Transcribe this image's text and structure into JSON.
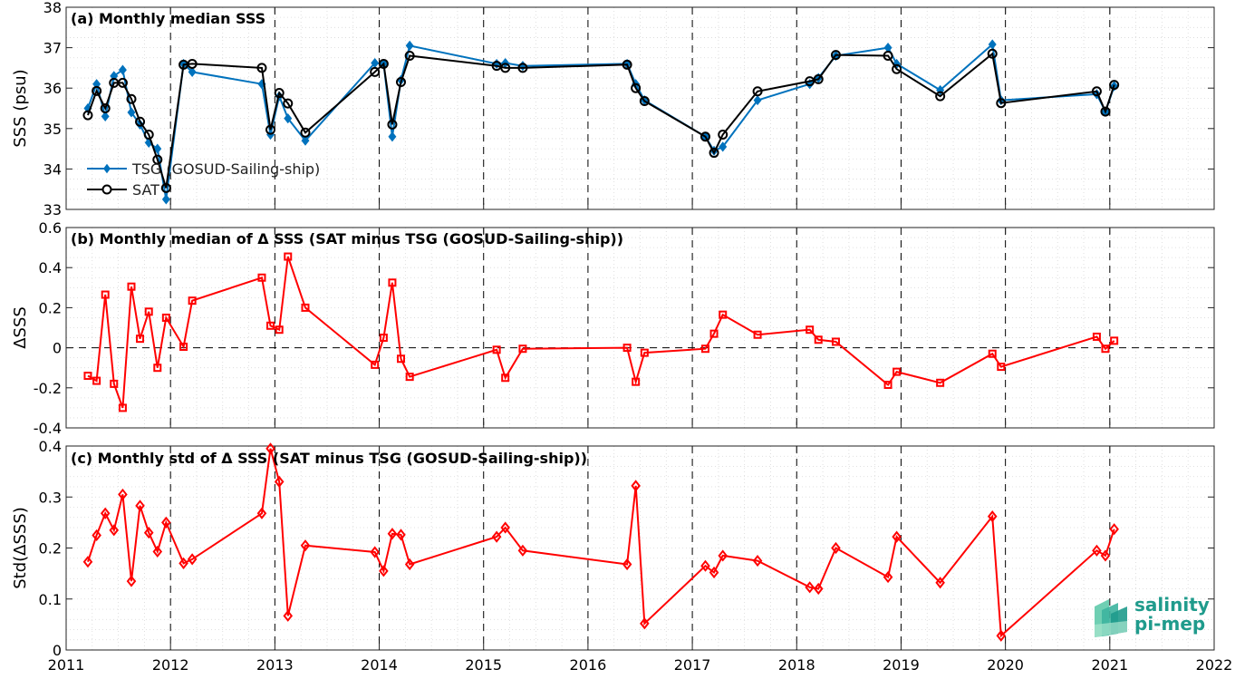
{
  "logo": {
    "line1": "salinity",
    "line2": "pi-mep"
  },
  "x_ticks": [
    "2011",
    "2012",
    "2013",
    "2014",
    "2015",
    "2016",
    "2017",
    "2018",
    "2019",
    "2020",
    "2021",
    "2022"
  ],
  "colors": {
    "tsg": "#0072BD",
    "sat": "#000000",
    "delta": "#FF0000"
  },
  "chart_data": [
    {
      "type": "line",
      "title": "(a) Monthly median SSS",
      "ylabel": "SSS (psu)",
      "xlim": [
        2011,
        2022
      ],
      "ylim": [
        33,
        38
      ],
      "yticks": [
        "33",
        "34",
        "35",
        "36",
        "37",
        "38"
      ],
      "grid": true,
      "legend_position": "bottom-left",
      "series": [
        {
          "name": "TSG (GOSUD-Sailing-ship)",
          "marker": "diamond",
          "points": [
            [
              2011.208,
              35.5
            ],
            [
              2011.292,
              36.1
            ],
            [
              2011.375,
              35.3
            ],
            [
              2011.458,
              36.3
            ],
            [
              2011.542,
              36.45
            ],
            [
              2011.625,
              35.4
            ],
            [
              2011.708,
              35.1
            ],
            [
              2011.792,
              34.65
            ],
            [
              2011.875,
              34.5
            ],
            [
              2011.958,
              33.25
            ],
            [
              2012.125,
              36.6
            ],
            [
              2012.208,
              36.4
            ],
            [
              2012.875,
              36.1
            ],
            [
              2012.958,
              34.85
            ],
            [
              2013.042,
              35.8
            ],
            [
              2013.125,
              35.25
            ],
            [
              2013.292,
              34.7
            ],
            [
              2013.958,
              36.62
            ],
            [
              2014.042,
              36.6
            ],
            [
              2014.125,
              34.8
            ],
            [
              2014.208,
              36.2
            ],
            [
              2014.292,
              37.05
            ],
            [
              2015.125,
              36.6
            ],
            [
              2015.208,
              36.62
            ],
            [
              2015.375,
              36.55
            ],
            [
              2016.375,
              36.6
            ],
            [
              2016.458,
              36.1
            ],
            [
              2016.542,
              35.7
            ],
            [
              2017.125,
              34.8
            ],
            [
              2017.208,
              34.45
            ],
            [
              2017.292,
              34.55
            ],
            [
              2017.625,
              35.7
            ],
            [
              2018.125,
              36.1
            ],
            [
              2018.208,
              36.25
            ],
            [
              2018.375,
              36.8
            ],
            [
              2018.875,
              37.0
            ],
            [
              2018.958,
              36.6
            ],
            [
              2019.375,
              35.95
            ],
            [
              2019.875,
              37.08
            ],
            [
              2019.958,
              35.7
            ],
            [
              2020.875,
              35.85
            ],
            [
              2020.958,
              35.42
            ],
            [
              2021.042,
              36.05
            ]
          ]
        },
        {
          "name": "SAT",
          "marker": "circle",
          "points": [
            [
              2011.208,
              35.33
            ],
            [
              2011.292,
              35.93
            ],
            [
              2011.375,
              35.5
            ],
            [
              2011.458,
              36.13
            ],
            [
              2011.542,
              36.13
            ],
            [
              2011.625,
              35.73
            ],
            [
              2011.708,
              35.17
            ],
            [
              2011.792,
              34.85
            ],
            [
              2011.875,
              34.23
            ],
            [
              2011.958,
              33.53
            ],
            [
              2012.125,
              36.58
            ],
            [
              2012.208,
              36.6
            ],
            [
              2012.875,
              36.5
            ],
            [
              2012.958,
              34.97
            ],
            [
              2013.042,
              35.88
            ],
            [
              2013.125,
              35.62
            ],
            [
              2013.292,
              34.9
            ],
            [
              2013.958,
              36.4
            ],
            [
              2014.042,
              36.6
            ],
            [
              2014.125,
              35.1
            ],
            [
              2014.208,
              36.15
            ],
            [
              2014.292,
              36.8
            ],
            [
              2015.125,
              36.55
            ],
            [
              2015.208,
              36.5
            ],
            [
              2015.375,
              36.5
            ],
            [
              2016.375,
              36.58
            ],
            [
              2016.458,
              36.0
            ],
            [
              2016.542,
              35.68
            ],
            [
              2017.125,
              34.8
            ],
            [
              2017.208,
              34.4
            ],
            [
              2017.292,
              34.85
            ],
            [
              2017.625,
              35.92
            ],
            [
              2018.125,
              36.17
            ],
            [
              2018.208,
              36.22
            ],
            [
              2018.375,
              36.82
            ],
            [
              2018.875,
              36.8
            ],
            [
              2018.958,
              36.47
            ],
            [
              2019.375,
              35.8
            ],
            [
              2019.875,
              36.85
            ],
            [
              2019.958,
              35.63
            ],
            [
              2020.875,
              35.92
            ],
            [
              2020.958,
              35.42
            ],
            [
              2021.042,
              36.08
            ]
          ]
        }
      ]
    },
    {
      "type": "line",
      "title": "(b) Monthly median of Δ SSS (SAT minus TSG (GOSUD-Sailing-ship))",
      "ylabel": "ΔSSS",
      "xlim": [
        2011,
        2022
      ],
      "ylim": [
        -0.4,
        0.6
      ],
      "yticks": [
        "-0.4",
        "-0.2",
        "0",
        "0.2",
        "0.4",
        "0.6"
      ],
      "grid": true,
      "zero_line": true,
      "series": [
        {
          "marker": "square",
          "points": [
            [
              2011.208,
              -0.14
            ],
            [
              2011.292,
              -0.165
            ],
            [
              2011.375,
              0.265
            ],
            [
              2011.458,
              -0.18
            ],
            [
              2011.542,
              -0.3
            ],
            [
              2011.625,
              0.305
            ],
            [
              2011.708,
              0.045
            ],
            [
              2011.792,
              0.18
            ],
            [
              2011.875,
              -0.1
            ],
            [
              2011.958,
              0.15
            ],
            [
              2012.125,
              0.005
            ],
            [
              2012.208,
              0.235
            ],
            [
              2012.875,
              0.35
            ],
            [
              2012.958,
              0.11
            ],
            [
              2013.042,
              0.09
            ],
            [
              2013.125,
              0.455
            ],
            [
              2013.292,
              0.2
            ],
            [
              2013.958,
              -0.085
            ],
            [
              2014.042,
              0.05
            ],
            [
              2014.125,
              0.325
            ],
            [
              2014.208,
              -0.055
            ],
            [
              2014.292,
              -0.145
            ],
            [
              2015.125,
              -0.01
            ],
            [
              2015.208,
              -0.15
            ],
            [
              2015.375,
              -0.005
            ],
            [
              2016.375,
              0.0
            ],
            [
              2016.458,
              -0.17
            ],
            [
              2016.542,
              -0.025
            ],
            [
              2017.125,
              -0.005
            ],
            [
              2017.208,
              0.07
            ],
            [
              2017.292,
              0.165
            ],
            [
              2017.625,
              0.065
            ],
            [
              2018.125,
              0.09
            ],
            [
              2018.208,
              0.04
            ],
            [
              2018.375,
              0.03
            ],
            [
              2018.875,
              -0.185
            ],
            [
              2018.958,
              -0.12
            ],
            [
              2019.375,
              -0.175
            ],
            [
              2019.875,
              -0.03
            ],
            [
              2019.958,
              -0.095
            ],
            [
              2020.875,
              0.055
            ],
            [
              2020.958,
              -0.005
            ],
            [
              2021.042,
              0.035
            ]
          ]
        }
      ]
    },
    {
      "type": "line",
      "title": "(c) Monthly std of Δ SSS (SAT minus TSG (GOSUD-Sailing-ship))",
      "ylabel": "Std(ΔSSS)",
      "xlim": [
        2011,
        2022
      ],
      "ylim": [
        0,
        0.4
      ],
      "yticks": [
        "0",
        "0.1",
        "0.2",
        "0.3",
        "0.4"
      ],
      "xticks": [
        "2011",
        "2012",
        "2013",
        "2014",
        "2015",
        "2016",
        "2017",
        "2018",
        "2019",
        "2020",
        "2021",
        "2022"
      ],
      "grid": true,
      "series": [
        {
          "marker": "diamond",
          "points": [
            [
              2011.208,
              0.173
            ],
            [
              2011.292,
              0.225
            ],
            [
              2011.375,
              0.268
            ],
            [
              2011.458,
              0.235
            ],
            [
              2011.542,
              0.305
            ],
            [
              2011.625,
              0.135
            ],
            [
              2011.708,
              0.283
            ],
            [
              2011.792,
              0.23
            ],
            [
              2011.875,
              0.193
            ],
            [
              2011.958,
              0.25
            ],
            [
              2012.125,
              0.17
            ],
            [
              2012.208,
              0.178
            ],
            [
              2012.875,
              0.268
            ],
            [
              2012.958,
              0.395
            ],
            [
              2013.042,
              0.33
            ],
            [
              2013.125,
              0.067
            ],
            [
              2013.292,
              0.205
            ],
            [
              2013.958,
              0.192
            ],
            [
              2014.042,
              0.155
            ],
            [
              2014.125,
              0.228
            ],
            [
              2014.208,
              0.226
            ],
            [
              2014.292,
              0.168
            ],
            [
              2015.125,
              0.222
            ],
            [
              2015.208,
              0.24
            ],
            [
              2015.375,
              0.195
            ],
            [
              2016.375,
              0.168
            ],
            [
              2016.458,
              0.322
            ],
            [
              2016.542,
              0.052
            ],
            [
              2017.125,
              0.165
            ],
            [
              2017.208,
              0.152
            ],
            [
              2017.292,
              0.185
            ],
            [
              2017.625,
              0.175
            ],
            [
              2018.125,
              0.123
            ],
            [
              2018.208,
              0.12
            ],
            [
              2018.375,
              0.2
            ],
            [
              2018.875,
              0.143
            ],
            [
              2018.958,
              0.222
            ],
            [
              2019.375,
              0.132
            ],
            [
              2019.875,
              0.262
            ],
            [
              2019.958,
              0.028
            ],
            [
              2020.875,
              0.195
            ],
            [
              2020.958,
              0.185
            ],
            [
              2021.042,
              0.237
            ]
          ]
        }
      ]
    }
  ]
}
